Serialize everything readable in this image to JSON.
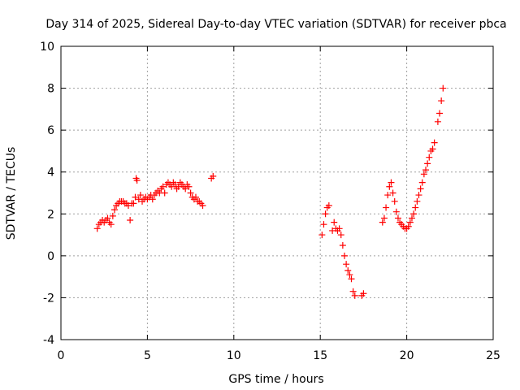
{
  "chart_data": {
    "type": "scatter",
    "title": "Day 314 of 2025, Sidereal Day-to-day VTEC variation (SDTVAR) for receiver pbca",
    "xlabel": "GPS time / hours",
    "ylabel": "SDTVAR / TECUs",
    "xlim": [
      0,
      25
    ],
    "ylim": [
      -4,
      10
    ],
    "xticks": [
      0,
      5,
      10,
      15,
      20,
      25
    ],
    "yticks": [
      -4,
      -2,
      0,
      2,
      4,
      6,
      8,
      10
    ],
    "grid": true,
    "marker": "+",
    "color": "#ff0000",
    "series": [
      {
        "name": "SDTVAR",
        "x": [
          2.1,
          2.2,
          2.3,
          2.4,
          2.5,
          2.6,
          2.7,
          2.8,
          2.9,
          3.0,
          3.1,
          3.2,
          3.3,
          3.4,
          3.5,
          3.6,
          3.7,
          3.8,
          3.9,
          4.0,
          4.1,
          4.2,
          4.3,
          4.35,
          4.4,
          4.5,
          4.6,
          4.7,
          4.8,
          4.9,
          5.0,
          5.1,
          5.2,
          5.3,
          5.4,
          5.5,
          5.6,
          5.7,
          5.8,
          5.9,
          6.0,
          6.1,
          6.2,
          6.3,
          6.4,
          6.5,
          6.6,
          6.7,
          6.8,
          6.9,
          7.0,
          7.1,
          7.2,
          7.3,
          7.4,
          7.5,
          7.6,
          7.7,
          7.8,
          7.9,
          8.0,
          8.1,
          8.2,
          8.7,
          8.8,
          15.1,
          15.2,
          15.3,
          15.4,
          15.5,
          15.7,
          15.8,
          15.9,
          16.0,
          16.1,
          16.2,
          16.3,
          16.4,
          16.5,
          16.6,
          16.7,
          16.8,
          16.9,
          17.0,
          17.4,
          17.5,
          18.6,
          18.7,
          18.8,
          18.9,
          19.0,
          19.1,
          19.2,
          19.3,
          19.4,
          19.5,
          19.6,
          19.7,
          19.8,
          19.9,
          20.0,
          20.1,
          20.2,
          20.3,
          20.4,
          20.5,
          20.6,
          20.7,
          20.8,
          20.9,
          21.0,
          21.1,
          21.2,
          21.3,
          21.4,
          21.5,
          21.6,
          21.8,
          21.9,
          22.0,
          22.1
        ],
        "y": [
          1.3,
          1.5,
          1.6,
          1.7,
          1.6,
          1.7,
          1.8,
          1.6,
          1.5,
          1.9,
          2.2,
          2.4,
          2.5,
          2.6,
          2.6,
          2.6,
          2.5,
          2.5,
          2.4,
          1.7,
          2.5,
          2.5,
          2.8,
          3.7,
          3.6,
          2.7,
          2.9,
          2.6,
          2.7,
          2.8,
          2.7,
          2.8,
          2.9,
          2.7,
          2.9,
          3.0,
          3.1,
          3.0,
          3.2,
          3.3,
          3.0,
          3.4,
          3.5,
          3.4,
          3.3,
          3.5,
          3.4,
          3.2,
          3.3,
          3.5,
          3.4,
          3.3,
          3.2,
          3.4,
          3.3,
          3.0,
          2.8,
          2.7,
          2.8,
          2.6,
          2.6,
          2.5,
          2.4,
          3.7,
          3.8,
          1.0,
          1.5,
          2.0,
          2.3,
          2.4,
          1.2,
          1.6,
          1.3,
          1.2,
          1.3,
          1.0,
          0.5,
          0.0,
          -0.4,
          -0.7,
          -0.9,
          -1.1,
          -1.7,
          -1.9,
          -1.9,
          -1.8,
          1.6,
          1.8,
          2.3,
          2.9,
          3.3,
          3.5,
          3.0,
          2.6,
          2.1,
          1.8,
          1.6,
          1.5,
          1.4,
          1.3,
          1.3,
          1.4,
          1.6,
          1.8,
          2.0,
          2.3,
          2.6,
          2.9,
          3.2,
          3.5,
          3.9,
          4.1,
          4.4,
          4.7,
          5.0,
          5.1,
          5.4,
          6.4,
          6.8,
          7.4,
          8.0
        ]
      }
    ]
  }
}
